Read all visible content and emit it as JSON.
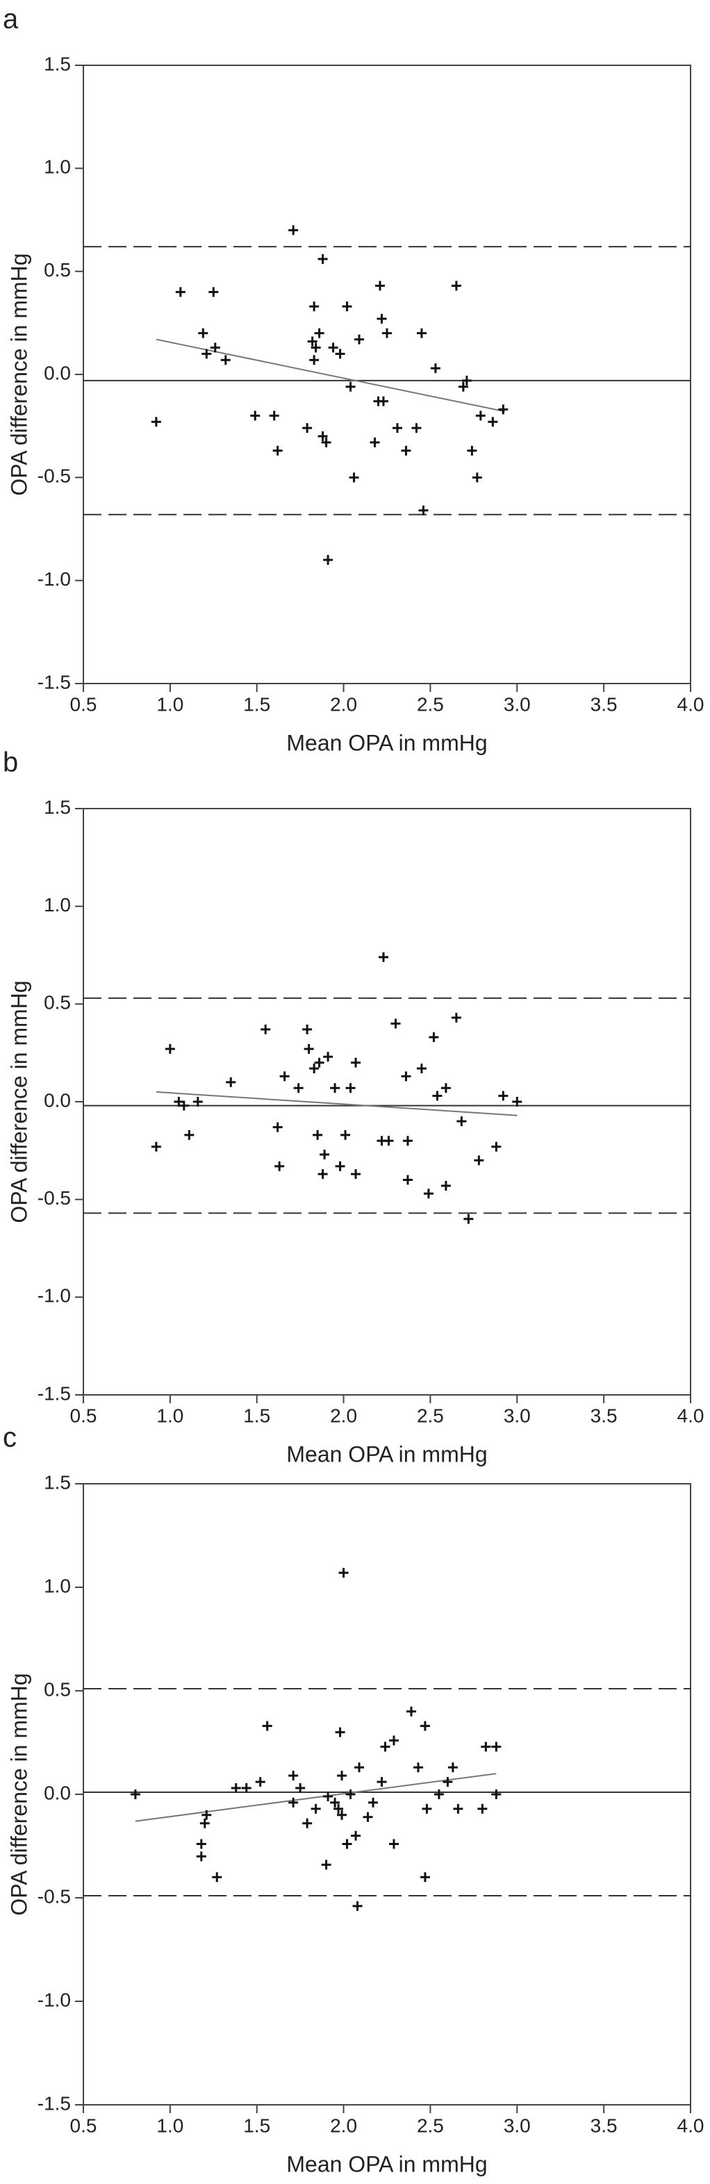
{
  "chart_data": [
    {
      "type": "scatter",
      "panel": "a",
      "xlabel": "Mean OPA in mmHg",
      "ylabel": "OPA difference in mmHg",
      "color": "#111111",
      "xlim": [
        0.5,
        4.0
      ],
      "ylim": [
        -1.5,
        1.5
      ],
      "xticks": [
        0.5,
        {
          "value": 1,
          "label": "1.0"
        },
        1.5,
        {
          "value": 2,
          "label": "2.0"
        },
        2.5,
        {
          "value": 3,
          "label": "3.0"
        },
        3.5,
        {
          "value": 4,
          "label": "4.0"
        }
      ],
      "yticks": [
        -1.5,
        {
          "value": -1,
          "label": "-1.0"
        },
        -0.5,
        {
          "value": 0,
          "label": "0.0"
        },
        0.5,
        {
          "value": 1,
          "label": "1.0"
        },
        1.5
      ],
      "x": [
        0.92,
        1.06,
        1.19,
        1.21,
        1.25,
        1.26,
        1.32,
        1.49,
        1.6,
        1.62,
        1.71,
        1.79,
        1.82,
        1.83,
        1.83,
        1.84,
        1.86,
        1.88,
        1.88,
        1.9,
        1.91,
        1.94,
        1.98,
        2.02,
        2.04,
        2.06,
        2.09,
        2.18,
        2.2,
        2.21,
        2.22,
        2.23,
        2.25,
        2.31,
        2.36,
        2.42,
        2.45,
        2.46,
        2.53,
        2.65,
        2.69,
        2.71,
        2.74,
        2.77,
        2.79,
        2.86,
        2.92
      ],
      "y": [
        -0.23,
        0.4,
        0.2,
        0.1,
        0.4,
        0.13,
        0.07,
        -0.2,
        -0.2,
        -0.37,
        0.7,
        -0.26,
        0.16,
        0.33,
        0.07,
        0.13,
        0.2,
        0.56,
        -0.3,
        -0.33,
        -0.9,
        0.13,
        0.1,
        0.33,
        -0.06,
        -0.5,
        0.17,
        -0.33,
        -0.13,
        0.43,
        0.27,
        -0.13,
        0.2,
        -0.26,
        -0.37,
        -0.26,
        0.2,
        -0.66,
        0.03,
        0.43,
        -0.06,
        -0.03,
        -0.37,
        -0.5,
        -0.2,
        -0.23,
        -0.17
      ],
      "mean_line": -0.03,
      "limits_of_agreement": [
        0.62,
        -0.68
      ],
      "regression": {
        "x": [
          0.92,
          2.93
        ],
        "y": [
          0.17,
          -0.18
        ]
      }
    },
    {
      "type": "scatter",
      "panel": "b",
      "xlabel": "Mean OPA in mmHg",
      "ylabel": "OPA difference in mmHg",
      "color": "#111111",
      "xlim": [
        0.5,
        4.0
      ],
      "ylim": [
        -1.5,
        1.5
      ],
      "xticks": [
        0.5,
        {
          "value": 1,
          "label": "1.0"
        },
        1.5,
        {
          "value": 2,
          "label": "2.0"
        },
        2.5,
        {
          "value": 3,
          "label": "3.0"
        },
        3.5,
        {
          "value": 4,
          "label": "4.0"
        }
      ],
      "yticks": [
        -1.5,
        {
          "value": -1,
          "label": "-1.0"
        },
        -0.5,
        {
          "value": 0,
          "label": "0.0"
        },
        0.5,
        {
          "value": 1,
          "label": "1.0"
        },
        1.5
      ],
      "x": [
        0.92,
        1.0,
        1.05,
        1.08,
        1.11,
        1.16,
        1.35,
        1.55,
        1.62,
        1.63,
        1.66,
        1.74,
        1.79,
        1.8,
        1.83,
        1.85,
        1.86,
        1.88,
        1.89,
        1.91,
        1.95,
        1.98,
        2.01,
        2.04,
        2.07,
        2.07,
        2.22,
        2.23,
        2.26,
        2.3,
        2.36,
        2.37,
        2.37,
        2.45,
        2.49,
        2.52,
        2.54,
        2.59,
        2.59,
        2.65,
        2.68,
        2.72,
        2.78,
        2.88,
        2.92,
        3.0
      ],
      "y": [
        -0.23,
        0.27,
        0.0,
        -0.02,
        -0.17,
        0.0,
        0.1,
        0.37,
        -0.13,
        -0.33,
        0.13,
        0.07,
        0.37,
        0.27,
        0.17,
        -0.17,
        0.2,
        -0.37,
        -0.27,
        0.23,
        0.07,
        -0.33,
        -0.17,
        0.07,
        -0.37,
        0.2,
        -0.2,
        0.74,
        -0.2,
        0.4,
        0.13,
        -0.2,
        -0.4,
        0.17,
        -0.47,
        0.33,
        0.03,
        -0.43,
        0.07,
        0.43,
        -0.1,
        -0.6,
        -0.3,
        -0.23,
        0.03,
        0.0
      ],
      "mean_line": -0.02,
      "limits_of_agreement": [
        0.53,
        -0.57
      ],
      "regression": {
        "x": [
          0.92,
          3.0
        ],
        "y": [
          0.05,
          -0.07
        ]
      }
    },
    {
      "type": "scatter",
      "panel": "c",
      "xlabel": "Mean OPA in mmHg",
      "ylabel": "OPA difference in mmHg",
      "color": "#111111",
      "xlim": [
        0.5,
        4.0
      ],
      "ylim": [
        -1.5,
        1.5
      ],
      "xticks": [
        0.5,
        {
          "value": 1,
          "label": "1.0"
        },
        1.5,
        {
          "value": 2,
          "label": "2.0"
        },
        2.5,
        {
          "value": 3,
          "label": "3.0"
        },
        3.5,
        {
          "value": 4,
          "label": "4.0"
        }
      ],
      "yticks": [
        -1.5,
        {
          "value": -1,
          "label": "-1.0"
        },
        -0.5,
        {
          "value": 0,
          "label": "0.0"
        },
        0.5,
        {
          "value": 1,
          "label": "1.0"
        },
        1.5
      ],
      "x": [
        0.8,
        1.18,
        1.18,
        1.2,
        1.21,
        1.27,
        1.38,
        1.44,
        1.52,
        1.56,
        1.71,
        1.71,
        1.75,
        1.79,
        1.84,
        1.9,
        1.91,
        1.95,
        1.97,
        1.98,
        1.99,
        1.99,
        2.0,
        2.02,
        2.04,
        2.07,
        2.08,
        2.09,
        2.14,
        2.17,
        2.22,
        2.24,
        2.29,
        2.29,
        2.39,
        2.43,
        2.47,
        2.47,
        2.48,
        2.55,
        2.6,
        2.63,
        2.66,
        2.8,
        2.82,
        2.88,
        2.88
      ],
      "y": [
        0.0,
        -0.3,
        -0.24,
        -0.14,
        -0.1,
        -0.4,
        0.03,
        0.03,
        0.06,
        0.33,
        0.09,
        -0.04,
        0.03,
        -0.14,
        -0.07,
        -0.34,
        -0.01,
        -0.04,
        -0.07,
        0.3,
        0.09,
        -0.1,
        1.07,
        -0.24,
        0.0,
        -0.2,
        -0.54,
        0.13,
        -0.11,
        -0.04,
        0.06,
        0.23,
        -0.24,
        0.26,
        0.4,
        0.13,
        -0.4,
        0.33,
        -0.07,
        0.0,
        0.06,
        0.13,
        -0.07,
        -0.07,
        0.23,
        0.23,
        0.0
      ],
      "mean_line": 0.01,
      "limits_of_agreement": [
        0.51,
        -0.49
      ],
      "regression": {
        "x": [
          0.8,
          2.88
        ],
        "y": [
          -0.13,
          0.1
        ]
      }
    }
  ]
}
